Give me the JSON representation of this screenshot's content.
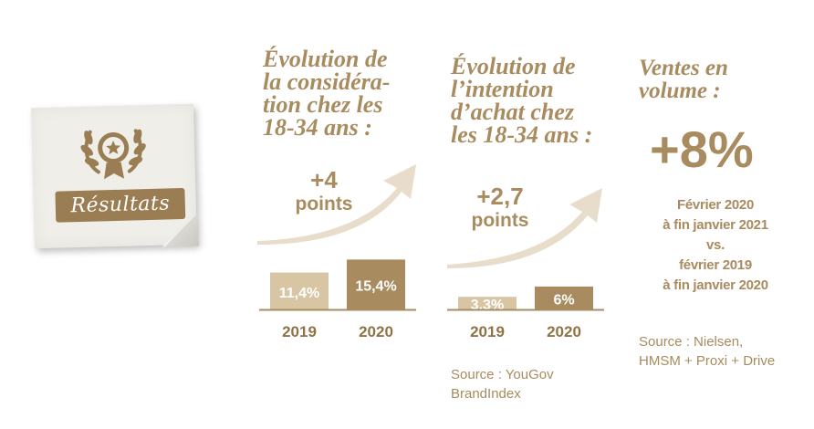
{
  "badge": {
    "label": "Résultats"
  },
  "colors": {
    "accent": "#a88b5e",
    "bar_light": "#d8c5a4",
    "bar_dark": "#a88b5e",
    "arrow": "#e8ddca"
  },
  "consideration": {
    "title_lines": [
      "Évolution de",
      "la considéra-",
      "tion chez les",
      "18-34 ans :"
    ],
    "delta_value": "+4",
    "delta_unit": "points"
  },
  "intent": {
    "title_lines": [
      "Évolution de",
      "l’intention",
      "d’achat chez",
      "les 18-34 ans :"
    ],
    "delta_value": "+2,7",
    "delta_unit": "points",
    "source_lines": [
      "Source : YouGov",
      "BrandIndex"
    ]
  },
  "sales": {
    "title_lines": [
      "Ventes en",
      "volume :"
    ],
    "value": "+8%",
    "period_lines": [
      "Février 2020",
      "à fin janvier 2021",
      "vs.",
      "février 2019",
      "à fin janvier 2020"
    ],
    "source_lines": [
      "Source : Nielsen,",
      "HMSM + Proxi + Drive"
    ]
  },
  "chart_data": [
    {
      "type": "bar",
      "title": "Évolution de la considération chez les 18-34 ans :",
      "categories": [
        "2019",
        "2020"
      ],
      "values": [
        11.4,
        15.4
      ],
      "value_labels": [
        "11,4%",
        "15,4%"
      ],
      "ylim": [
        0,
        18
      ]
    },
    {
      "type": "bar",
      "title": "Évolution de l’intention d’achat chez les 18-34 ans :",
      "categories": [
        "2019",
        "2020"
      ],
      "values": [
        3.3,
        6
      ],
      "value_labels": [
        "3,3%",
        "6%"
      ],
      "ylim": [
        0,
        10
      ]
    }
  ]
}
